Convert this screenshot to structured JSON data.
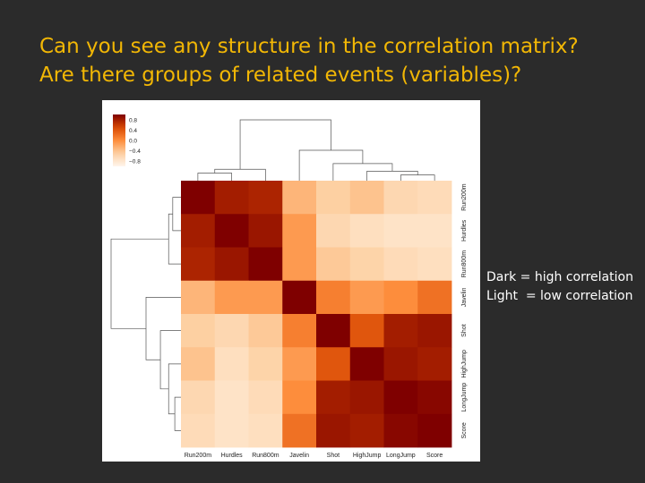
{
  "slide": {
    "title_lines": [
      "Can you see any structure in the correlation matrix?",
      "Are there groups of related events (variables)?"
    ],
    "notes": [
      "Dark = high correlation",
      "Light  = low correlation"
    ]
  },
  "chart_data": {
    "type": "heatmap",
    "title": "",
    "variables": [
      "Run200m",
      "Hurdles",
      "Run800m",
      "Javelin",
      "Shot",
      "HighJump",
      "LongJump",
      "Score"
    ],
    "row_labels": [
      "Run200m",
      "Hurdles",
      "Run800m",
      "Javelin",
      "Shot",
      "HighJump",
      "LongJump",
      "Score"
    ],
    "col_labels": [
      "Run200m",
      "Hurdles",
      "Run800m",
      "Javelin",
      "Shot",
      "HighJump",
      "LongJump",
      "Score"
    ],
    "matrix": [
      [
        1.0,
        0.8,
        0.75,
        -0.3,
        -0.5,
        -0.4,
        -0.6,
        -0.65
      ],
      [
        0.8,
        1.0,
        0.85,
        -0.1,
        -0.6,
        -0.7,
        -0.75,
        -0.75
      ],
      [
        0.75,
        0.85,
        1.0,
        -0.1,
        -0.45,
        -0.55,
        -0.65,
        -0.7
      ],
      [
        -0.3,
        -0.1,
        -0.1,
        1.0,
        0.1,
        -0.1,
        0.0,
        0.2
      ],
      [
        -0.5,
        -0.6,
        -0.45,
        0.1,
        1.0,
        0.4,
        0.8,
        0.85
      ],
      [
        -0.4,
        -0.7,
        -0.55,
        -0.1,
        0.4,
        1.0,
        0.85,
        0.8
      ],
      [
        -0.6,
        -0.75,
        -0.65,
        0.0,
        0.8,
        0.85,
        1.0,
        0.95
      ],
      [
        -0.65,
        -0.75,
        -0.7,
        0.2,
        0.85,
        0.8,
        0.95,
        1.0
      ]
    ],
    "colorbar": {
      "ticks": [
        0.8,
        0.4,
        0.0,
        -0.4,
        -0.8
      ],
      "tick_labels": [
        "0.8",
        "0.4",
        "0.0",
        "−0.4",
        "−0.8"
      ],
      "range": [
        -1.0,
        1.0
      ]
    },
    "colormap": [
      "#fff5eb",
      "#fdd0a2",
      "#fd8d3c",
      "#d94801",
      "#7f0000"
    ],
    "row_dendrogram": [
      {
        "a": 0,
        "b": 1,
        "h": 0.2
      },
      {
        "a": 8,
        "b": 2,
        "h": 0.3
      },
      {
        "a": 6,
        "b": 7,
        "h": 0.15
      },
      {
        "a": 10,
        "b": 5,
        "h": 0.3
      },
      {
        "a": 11,
        "b": 4,
        "h": 0.5
      },
      {
        "a": 12,
        "b": 3,
        "h": 0.85
      },
      {
        "a": 9,
        "b": 13,
        "h": 1.7
      }
    ],
    "col_dendrogram": [
      {
        "a": 0,
        "b": 1,
        "h": 0.2
      },
      {
        "a": 8,
        "b": 2,
        "h": 0.3
      },
      {
        "a": 6,
        "b": 7,
        "h": 0.15
      },
      {
        "a": 10,
        "b": 5,
        "h": 0.25
      },
      {
        "a": 11,
        "b": 4,
        "h": 0.45
      },
      {
        "a": 12,
        "b": 3,
        "h": 0.8
      },
      {
        "a": 9,
        "b": 13,
        "h": 1.6
      }
    ]
  }
}
